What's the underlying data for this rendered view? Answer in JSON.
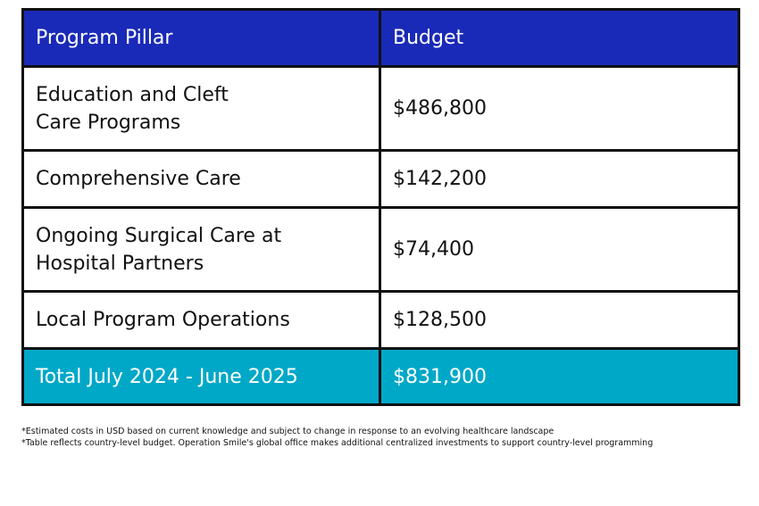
{
  "table": {
    "headers": {
      "pillar": "Program Pillar",
      "budget": "Budget"
    },
    "rows": [
      {
        "pillar_line1": "Education and Cleft",
        "pillar_line2": "Care Programs",
        "budget": "$486,800"
      },
      {
        "pillar_line1": "Comprehensive Care",
        "budget": "$142,200"
      },
      {
        "pillar_line1": "Ongoing Surgical Care at",
        "pillar_line2": "Hospital Partners",
        "budget": "$74,400"
      },
      {
        "pillar_line1": "Local Program Operations",
        "budget": "$128,500"
      }
    ],
    "total": {
      "label": "Total July 2024 - June 2025",
      "budget": "$831,900"
    }
  },
  "footnotes": [
    "*Estimated costs in USD based on current knowledge and subject to change in response to an evolving healthcare landscape",
    "*Table reflects country-level budget. Operation Smile's global office makes additional centralized investments to support country-level programming"
  ],
  "colors": {
    "header_bg": "#1a2ab8",
    "total_bg": "#00a8c8",
    "border": "#111111"
  }
}
